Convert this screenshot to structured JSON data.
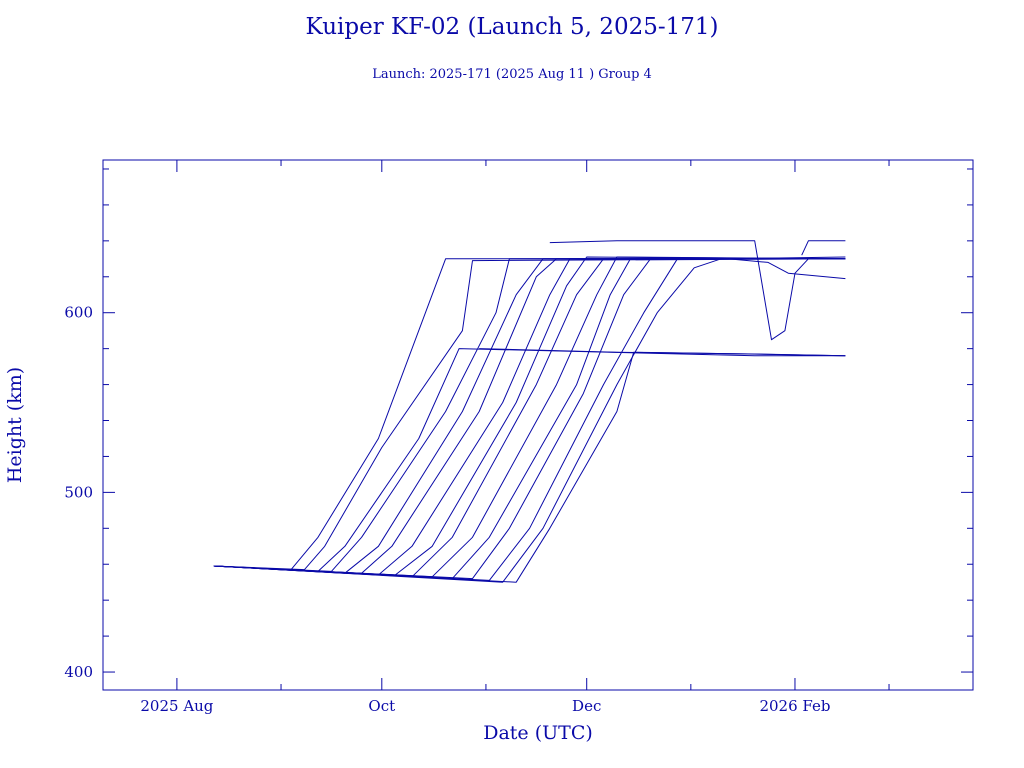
{
  "chart_data": {
    "type": "line",
    "title": "Kuiper KF-02 (Launch 5, 2025-171)",
    "subtitle": "Launch: 2025-171  (2025 Aug 11 )  Group 4",
    "xlabel": "Date (UTC)",
    "ylabel": "Height (km)",
    "xlim": [
      "2025-07-10",
      "2026-03-26"
    ],
    "ylim": [
      390,
      685
    ],
    "x_ticks": [
      {
        "date": "2025-08-01",
        "label": "2025 Aug"
      },
      {
        "date": "2025-10-01",
        "label": "Oct"
      },
      {
        "date": "2025-12-01",
        "label": "Dec"
      },
      {
        "date": "2026-02-01",
        "label": "2026 Feb"
      }
    ],
    "x_minor_ticks": [
      "2025-09-01",
      "2025-11-01",
      "2026-01-01",
      "2026-03-01"
    ],
    "y_ticks": [
      400,
      500,
      600
    ],
    "grid": false,
    "color": "#0a0aa8",
    "series": [
      {
        "points": [
          [
            "2025-08-12",
            459
          ],
          [
            "2025-09-04",
            457
          ],
          [
            "2025-09-12",
            475
          ],
          [
            "2025-09-30",
            530
          ],
          [
            "2025-10-20",
            630
          ],
          [
            "2026-02-16",
            630
          ]
        ]
      },
      {
        "points": [
          [
            "2025-08-12",
            459
          ],
          [
            "2025-09-08",
            457
          ],
          [
            "2025-09-14",
            470
          ],
          [
            "2025-10-01",
            525
          ],
          [
            "2025-10-25",
            590
          ],
          [
            "2025-10-28",
            629
          ],
          [
            "2026-02-16",
            630
          ]
        ]
      },
      {
        "points": [
          [
            "2025-08-12",
            459
          ],
          [
            "2025-09-12",
            456
          ],
          [
            "2025-09-20",
            470
          ],
          [
            "2025-10-12",
            530
          ],
          [
            "2025-10-24",
            580
          ],
          [
            "2026-01-20",
            576
          ],
          [
            "2026-02-16",
            576
          ]
        ]
      },
      {
        "points": [
          [
            "2025-08-12",
            459
          ],
          [
            "2025-09-16",
            456
          ],
          [
            "2025-09-25",
            475
          ],
          [
            "2025-10-20",
            545
          ],
          [
            "2025-11-04",
            600
          ],
          [
            "2025-11-08",
            630
          ],
          [
            "2026-02-16",
            630
          ]
        ]
      },
      {
        "points": [
          [
            "2025-08-12",
            459
          ],
          [
            "2025-09-20",
            455
          ],
          [
            "2025-09-30",
            470
          ],
          [
            "2025-10-25",
            545
          ],
          [
            "2025-11-10",
            610
          ],
          [
            "2025-11-18",
            630
          ],
          [
            "2026-02-16",
            630
          ]
        ]
      },
      {
        "points": [
          [
            "2025-08-12",
            459
          ],
          [
            "2025-09-25",
            455
          ],
          [
            "2025-10-04",
            470
          ],
          [
            "2025-10-30",
            545
          ],
          [
            "2025-11-16",
            620
          ],
          [
            "2025-11-22",
            630
          ],
          [
            "2026-02-16",
            630
          ]
        ]
      },
      {
        "points": [
          [
            "2025-08-12",
            459
          ],
          [
            "2025-09-30",
            454
          ],
          [
            "2025-10-10",
            470
          ],
          [
            "2025-11-06",
            550
          ],
          [
            "2025-11-20",
            610
          ],
          [
            "2025-11-26",
            630
          ],
          [
            "2026-02-16",
            630
          ]
        ]
      },
      {
        "points": [
          [
            "2025-08-12",
            459
          ],
          [
            "2025-10-05",
            454
          ],
          [
            "2025-10-16",
            470
          ],
          [
            "2025-11-10",
            550
          ],
          [
            "2025-11-25",
            615
          ],
          [
            "2025-12-01",
            631
          ],
          [
            "2026-02-16",
            630
          ]
        ]
      },
      {
        "points": [
          [
            "2025-08-12",
            459
          ],
          [
            "2025-10-10",
            453
          ],
          [
            "2025-10-22",
            475
          ],
          [
            "2025-11-16",
            560
          ],
          [
            "2025-11-28",
            610
          ],
          [
            "2025-12-06",
            630
          ],
          [
            "2026-02-16",
            630
          ]
        ]
      },
      {
        "points": [
          [
            "2025-08-12",
            459
          ],
          [
            "2025-10-16",
            453
          ],
          [
            "2025-10-28",
            475
          ],
          [
            "2025-11-22",
            560
          ],
          [
            "2025-12-04",
            610
          ],
          [
            "2025-12-10",
            631
          ],
          [
            "2026-02-16",
            630
          ]
        ]
      },
      {
        "points": [
          [
            "2025-08-12",
            459
          ],
          [
            "2025-10-22",
            452
          ],
          [
            "2025-11-02",
            475
          ],
          [
            "2025-11-28",
            560
          ],
          [
            "2025-12-08",
            610
          ],
          [
            "2025-12-14",
            630
          ],
          [
            "2026-02-16",
            630
          ]
        ]
      },
      {
        "points": [
          [
            "2025-08-12",
            459
          ],
          [
            "2025-10-28",
            452
          ],
          [
            "2025-11-08",
            480
          ],
          [
            "2025-11-30",
            555
          ],
          [
            "2025-12-12",
            610
          ],
          [
            "2025-12-20",
            630
          ],
          [
            "2026-02-16",
            630
          ]
        ]
      },
      {
        "points": [
          [
            "2025-08-12",
            459
          ],
          [
            "2025-11-02",
            451
          ],
          [
            "2025-11-14",
            480
          ],
          [
            "2025-12-06",
            560
          ],
          [
            "2025-12-18",
            600
          ],
          [
            "2025-12-28",
            630
          ],
          [
            "2026-02-16",
            630
          ]
        ]
      },
      {
        "points": [
          [
            "2025-08-12",
            459
          ],
          [
            "2025-11-06",
            450
          ],
          [
            "2025-11-18",
            480
          ],
          [
            "2025-12-10",
            560
          ],
          [
            "2025-12-22",
            600
          ],
          [
            "2026-01-02",
            625
          ],
          [
            "2026-01-10",
            630
          ],
          [
            "2026-02-16",
            631
          ]
        ]
      },
      {
        "points": [
          [
            "2025-08-12",
            459
          ],
          [
            "2025-11-10",
            450
          ],
          [
            "2025-11-20",
            480
          ],
          [
            "2025-12-10",
            545
          ],
          [
            "2025-12-15",
            578
          ],
          [
            "2026-01-18",
            577
          ],
          [
            "2026-02-16",
            576
          ]
        ]
      },
      {
        "points": [
          [
            "2025-10-30",
            580
          ],
          [
            "2025-12-10",
            578
          ],
          [
            "2026-01-20",
            577
          ],
          [
            "2026-02-16",
            576
          ]
        ]
      },
      {
        "points": [
          [
            "2025-12-20",
            630
          ],
          [
            "2026-01-12",
            630
          ],
          [
            "2026-01-24",
            628
          ],
          [
            "2026-01-30",
            622
          ],
          [
            "2026-02-16",
            619
          ]
        ]
      },
      {
        "points": [
          [
            "2025-11-20",
            639
          ],
          [
            "2025-12-10",
            640
          ],
          [
            "2026-01-20",
            640
          ],
          [
            "2026-01-25",
            585
          ],
          [
            "2026-01-29",
            590
          ],
          [
            "2026-02-01",
            622
          ],
          [
            "2026-02-05",
            630
          ]
        ]
      },
      {
        "points": [
          [
            "2026-02-03",
            632
          ],
          [
            "2026-02-05",
            640
          ],
          [
            "2026-02-16",
            640
          ]
        ]
      }
    ]
  }
}
